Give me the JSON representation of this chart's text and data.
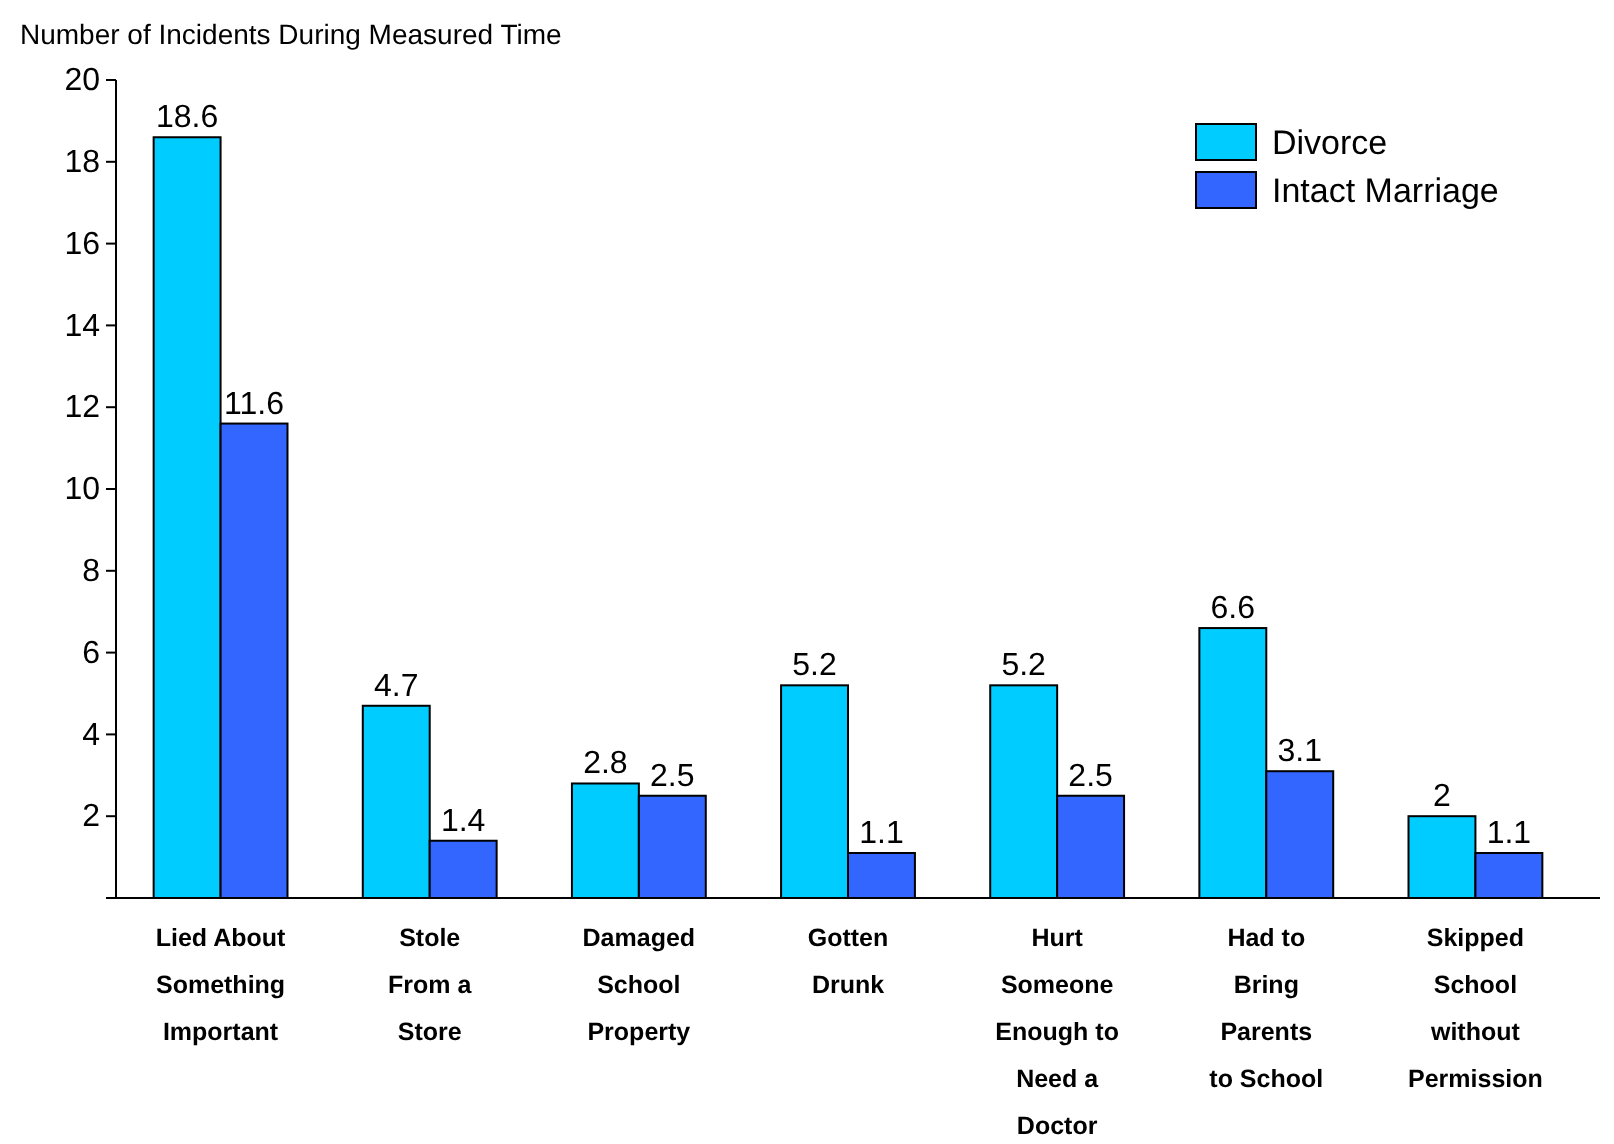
{
  "chart_data": {
    "type": "bar",
    "ylabel": "Number of Incidents During Measured Time",
    "categories": [
      "Lied About\nSomething\nImportant",
      "Stole\nFrom a\nStore",
      "Damaged\nSchool\nProperty",
      "Gotten\nDrunk",
      "Hurt\nSomeone\nEnough to\nNeed a\nDoctor",
      "Had to\nBring\nParents\nto School",
      "Skipped\nSchool\nwithout\nPermission"
    ],
    "series": [
      {
        "name": "Divorce",
        "color": "#00ccff",
        "values": [
          18.6,
          4.7,
          2.8,
          5.2,
          5.2,
          6.6,
          2
        ]
      },
      {
        "name": "Intact Marriage",
        "color": "#3366ff",
        "values": [
          11.6,
          1.4,
          2.5,
          1.1,
          2.5,
          3.1,
          1.1
        ]
      }
    ],
    "ylim": [
      0,
      20
    ],
    "yticks": [
      {
        "value": 0,
        "label": null
      },
      2,
      4,
      6,
      8,
      10,
      12,
      14,
      16,
      18,
      20
    ],
    "data_labels": true,
    "legend": "top right",
    "grid": false
  }
}
